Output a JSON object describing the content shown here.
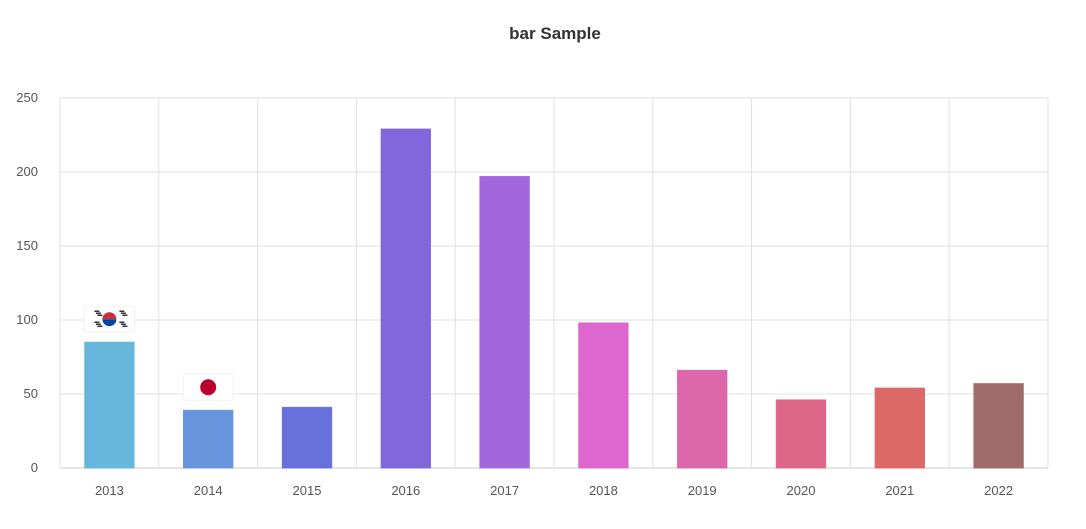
{
  "chart_data": {
    "type": "bar",
    "title": "bar Sample",
    "xlabel": "",
    "ylabel": "",
    "categories": [
      "2013",
      "2014",
      "2015",
      "2016",
      "2017",
      "2018",
      "2019",
      "2020",
      "2021",
      "2022"
    ],
    "values": [
      85,
      39,
      41,
      229,
      197,
      98,
      66,
      46,
      54,
      57
    ],
    "ylim": [
      0,
      250
    ],
    "yticks": [
      0,
      50,
      100,
      150,
      200,
      250
    ],
    "grid": true,
    "legend": "none",
    "bar_colors": [
      "#67b7dc",
      "#6794dc",
      "#6771dc",
      "#8067dc",
      "#a367dc",
      "#dc67ce",
      "#dc67ab",
      "#dc6788",
      "#dc6967",
      "#a06b6b"
    ],
    "annotations": [
      {
        "category": "2013",
        "icon": "south-korea-flag-icon"
      },
      {
        "category": "2014",
        "icon": "japan-flag-icon"
      }
    ]
  }
}
